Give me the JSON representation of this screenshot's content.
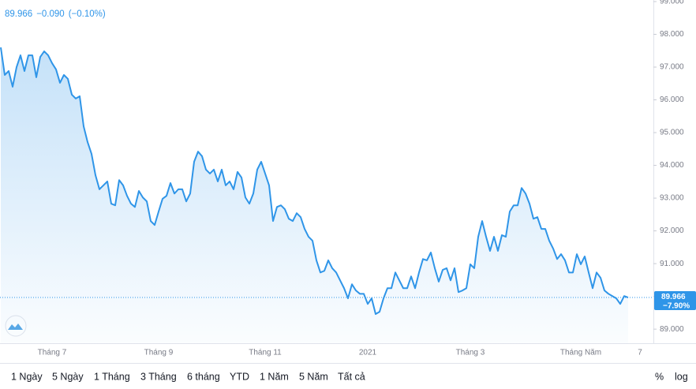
{
  "chart_data": {
    "type": "area-line",
    "header": {
      "price": "89.966",
      "change": "−0.090",
      "change_pct": "(−0.10%)"
    },
    "categories": [
      null,
      null,
      null,
      null,
      null,
      null,
      null,
      null,
      null,
      null,
      null,
      null,
      null,
      "Tháng 7",
      null,
      null,
      null,
      null,
      null,
      null,
      null,
      null,
      null,
      null,
      null,
      null,
      null,
      null,
      null,
      null,
      null,
      null,
      null,
      null,
      null,
      null,
      null,
      null,
      null,
      null,
      "Tháng 9",
      null,
      null,
      null,
      null,
      null,
      null,
      null,
      null,
      null,
      null,
      null,
      null,
      null,
      null,
      null,
      null,
      null,
      null,
      null,
      null,
      null,
      null,
      null,
      null,
      null,
      null,
      "Tháng 11",
      null,
      null,
      null,
      null,
      null,
      null,
      null,
      null,
      null,
      null,
      null,
      null,
      null,
      null,
      null,
      null,
      null,
      null,
      null,
      null,
      null,
      null,
      null,
      null,
      null,
      "2021",
      null,
      null,
      null,
      null,
      null,
      null,
      null,
      null,
      null,
      null,
      null,
      null,
      null,
      null,
      null,
      null,
      null,
      null,
      null,
      null,
      null,
      null,
      null,
      null,
      null,
      "Tháng 3",
      null,
      null,
      null,
      null,
      null,
      null,
      null,
      null,
      null,
      null,
      null,
      null,
      null,
      null,
      null,
      null,
      null,
      null,
      null,
      null,
      null,
      null,
      null,
      null,
      null,
      null,
      null,
      "Tháng Năm",
      null,
      null,
      null,
      null,
      null,
      null,
      null,
      null,
      null,
      null,
      null,
      null,
      null,
      null,
      "7"
    ],
    "series": [
      {
        "color": "#2f95e8",
        "values": [
          97.6,
          96.76,
          96.88,
          96.4,
          97.0,
          97.36,
          96.88,
          97.36,
          97.36,
          96.69,
          97.31,
          97.48,
          97.36,
          97.12,
          96.93,
          96.52,
          96.76,
          96.64,
          96.16,
          96.04,
          96.11,
          95.19,
          94.71,
          94.35,
          93.7,
          93.27,
          93.39,
          93.51,
          92.83,
          92.78,
          93.55,
          93.39,
          93.07,
          92.83,
          92.73,
          93.22,
          93.02,
          92.9,
          92.3,
          92.18,
          92.59,
          92.98,
          93.07,
          93.46,
          93.14,
          93.27,
          93.27,
          92.9,
          93.14,
          94.11,
          94.42,
          94.28,
          93.87,
          93.75,
          93.87,
          93.51,
          93.87,
          93.39,
          93.51,
          93.27,
          93.8,
          93.63,
          93.02,
          92.83,
          93.14,
          93.87,
          94.11,
          93.75,
          93.39,
          92.3,
          92.73,
          92.78,
          92.66,
          92.37,
          92.3,
          92.54,
          92.42,
          92.06,
          91.82,
          91.7,
          91.1,
          90.73,
          90.78,
          91.1,
          90.86,
          90.73,
          90.49,
          90.25,
          89.94,
          90.37,
          90.18,
          90.08,
          90.08,
          89.77,
          89.94,
          89.46,
          89.53,
          89.94,
          90.25,
          90.25,
          90.73,
          90.49,
          90.25,
          90.25,
          90.61,
          90.25,
          90.73,
          91.14,
          91.1,
          91.34,
          90.86,
          90.45,
          90.81,
          90.86,
          90.49,
          90.86,
          90.13,
          90.18,
          90.25,
          90.98,
          90.86,
          91.82,
          92.3,
          91.82,
          91.39,
          91.82,
          91.39,
          91.87,
          91.82,
          92.59,
          92.78,
          92.78,
          93.31,
          93.14,
          92.83,
          92.37,
          92.42,
          92.06,
          92.06,
          91.7,
          91.46,
          91.14,
          91.29,
          91.1,
          90.73,
          90.73,
          91.29,
          90.98,
          91.22,
          90.73,
          90.25,
          90.73,
          90.57,
          90.18,
          90.08,
          90.01,
          89.94,
          89.77,
          90.01,
          89.966,
          null,
          null,
          null
        ]
      }
    ],
    "last_price": {
      "value": 89.966,
      "label": "89.966"
    },
    "last_change_pct": "−7.90%",
    "ylim": [
      88.57,
      99.0
    ],
    "yticks": [
      {
        "value": 89,
        "label": "89.000"
      },
      {
        "value": 90,
        "label": "90.000"
      },
      {
        "value": 91,
        "label": "91.000"
      },
      {
        "value": 92,
        "label": "92.000"
      },
      {
        "value": 93,
        "label": "93.000"
      },
      {
        "value": 94,
        "label": "94.000"
      },
      {
        "value": 95,
        "label": "95.000"
      },
      {
        "value": 96,
        "label": "96.000"
      },
      {
        "value": 97,
        "label": "97.000"
      },
      {
        "value": 98,
        "label": "98.000"
      },
      {
        "value": 99,
        "label": "99.000"
      }
    ],
    "grid": false
  },
  "toolbar": {
    "ranges": [
      "1 Ngày",
      "5 Ngày",
      "1 Tháng",
      "3 Tháng",
      "6 tháng",
      "YTD",
      "1 Năm",
      "5 Năm",
      "Tất cả"
    ],
    "scales": [
      "%",
      "log"
    ]
  }
}
